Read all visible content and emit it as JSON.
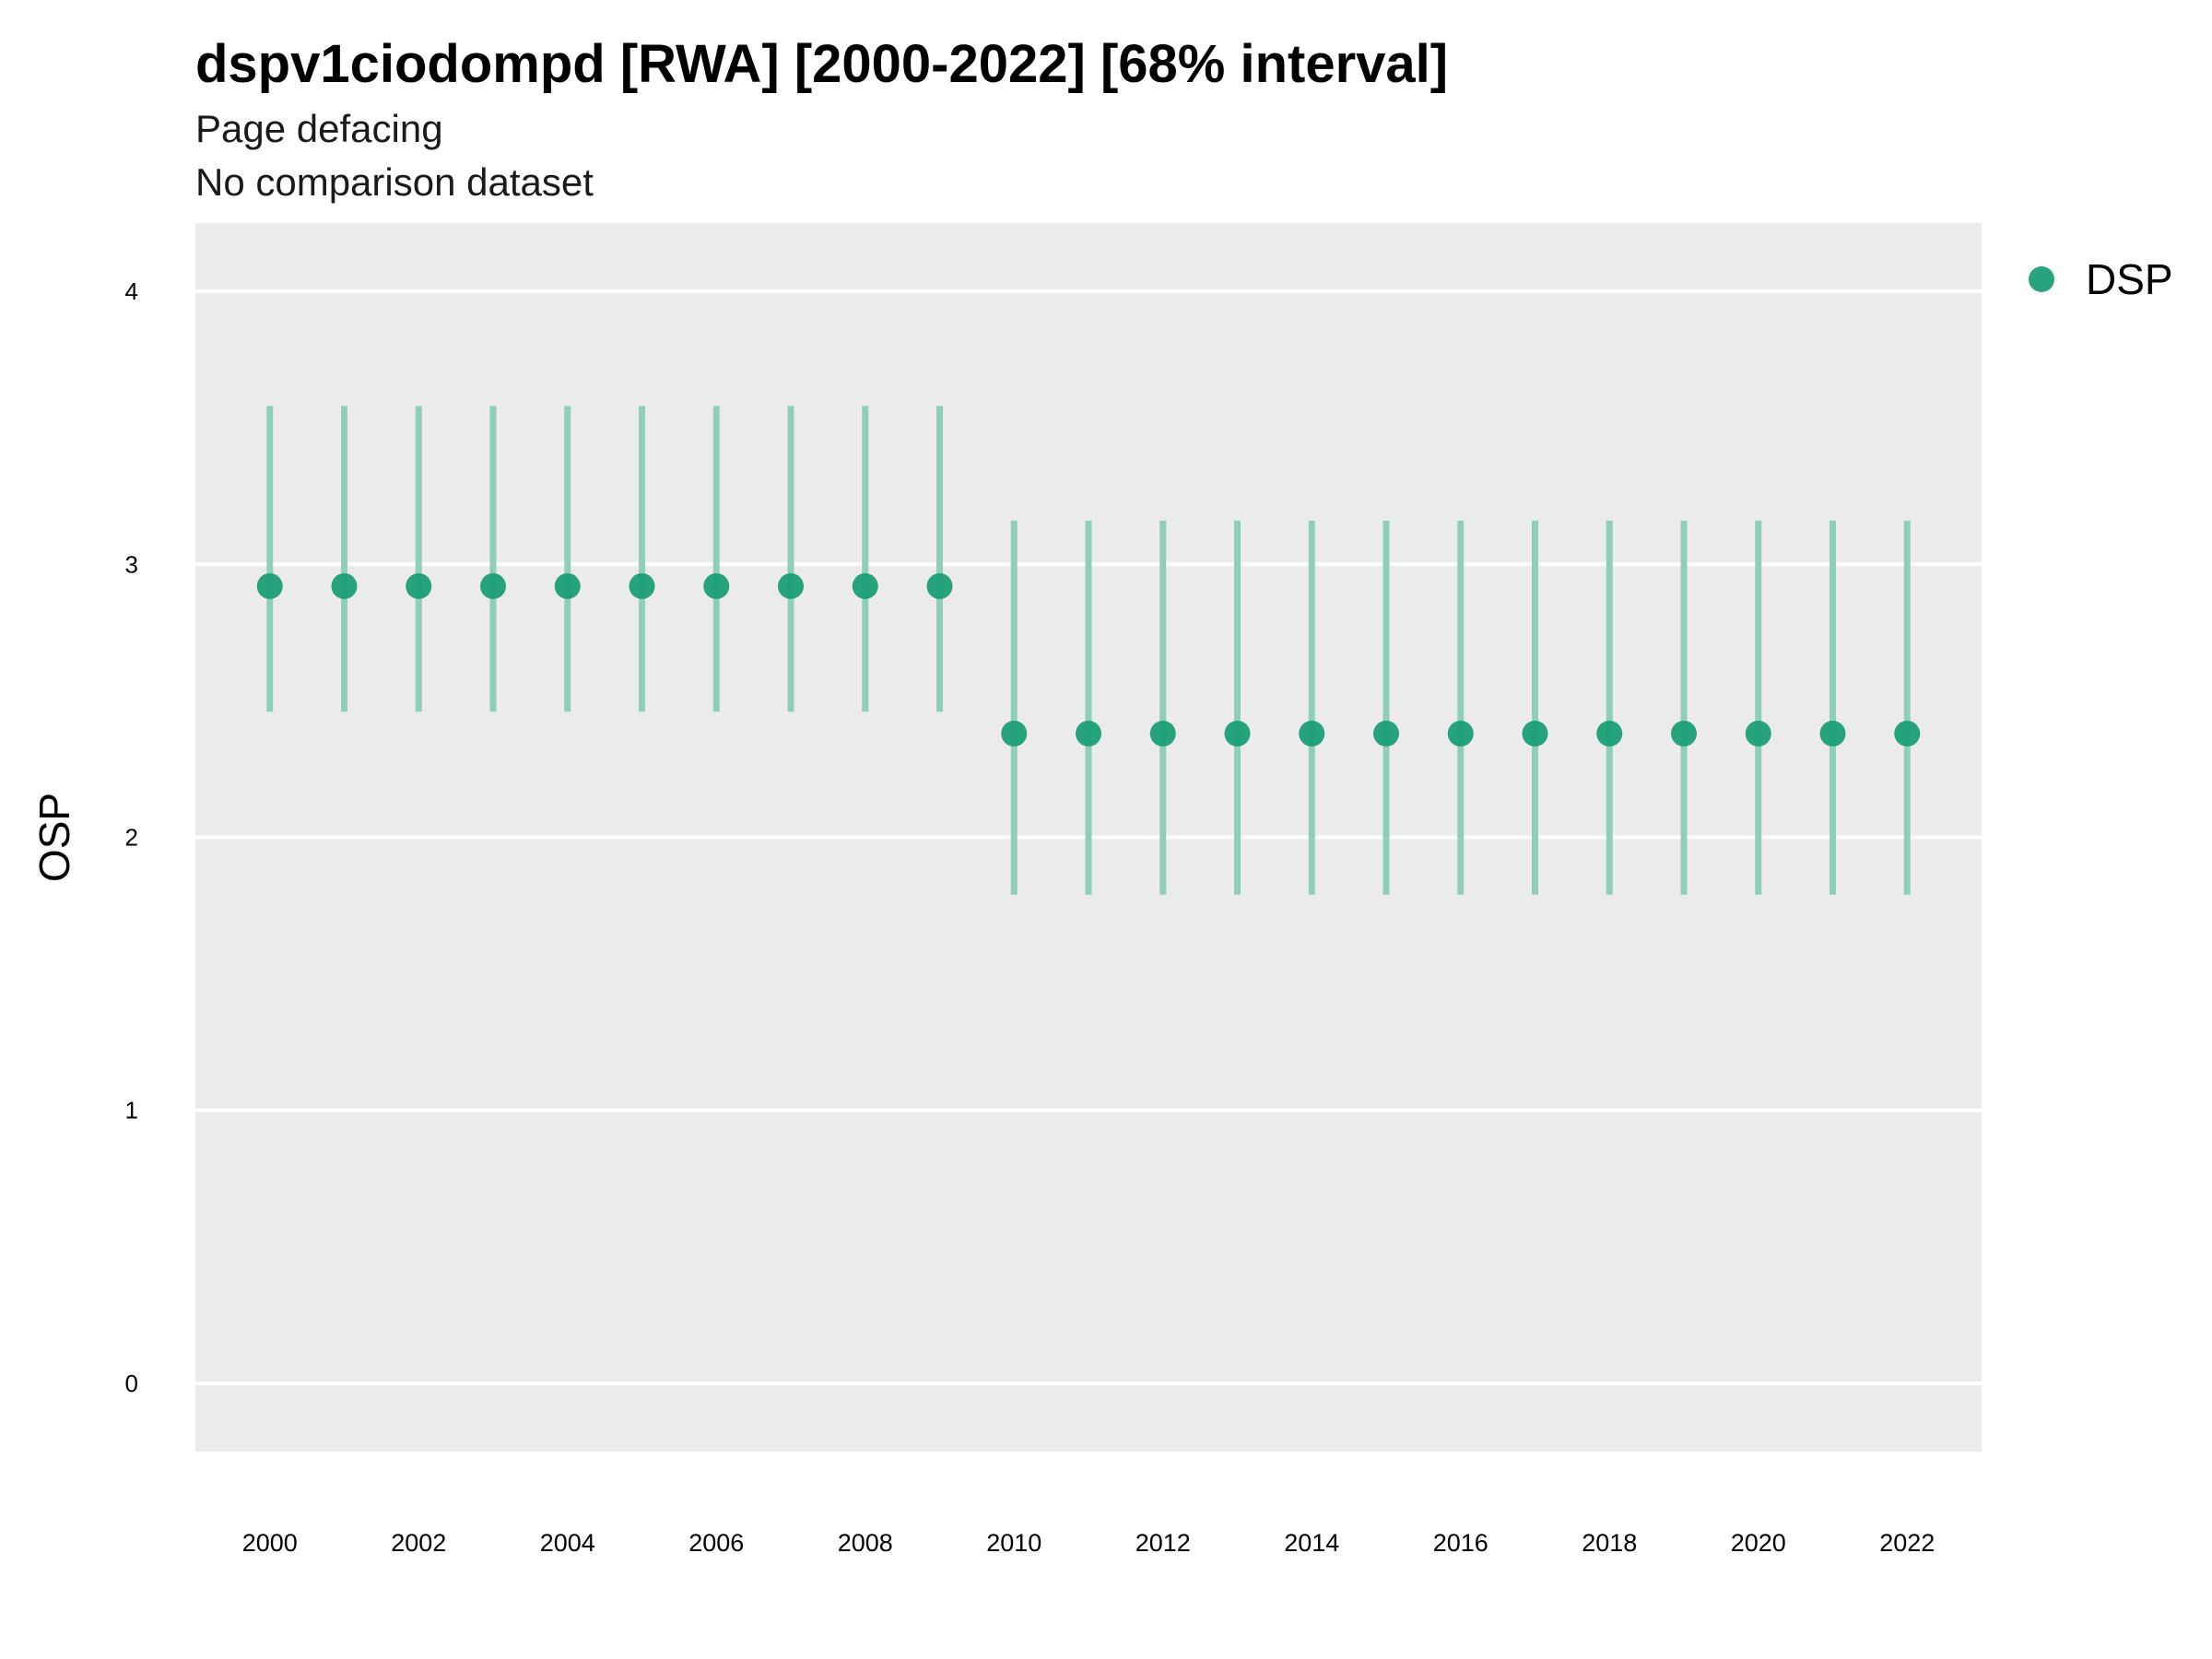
{
  "chart_data": {
    "type": "scatter",
    "title": "dspv1ciodompd [RWA] [2000-2022] [68% interval]",
    "subtitle": [
      "Page defacing",
      "No comparison dataset"
    ],
    "xlabel": "",
    "ylabel": "OSP",
    "xlim": [
      1999,
      2023
    ],
    "ylim": [
      -0.25,
      4.25
    ],
    "x_ticks": [
      "2000",
      "2002",
      "2004",
      "2006",
      "2008",
      "2010",
      "2012",
      "2014",
      "2016",
      "2018",
      "2020",
      "2022"
    ],
    "y_ticks": [
      "0",
      "1",
      "2",
      "3",
      "4"
    ],
    "grid": true,
    "legend": {
      "position": "right",
      "entries": [
        "DSP"
      ]
    },
    "colors": {
      "point": "#1b9e77",
      "interval": "#8fcfb9",
      "panel": "#ebebeb",
      "grid": "#ffffff"
    },
    "series": [
      {
        "name": "DSP",
        "x": [
          2000,
          2001,
          2002,
          2003,
          2004,
          2005,
          2006,
          2007,
          2008,
          2009,
          2010,
          2011,
          2012,
          2013,
          2014,
          2015,
          2016,
          2017,
          2018,
          2019,
          2020,
          2021,
          2022
        ],
        "y": [
          2.92,
          2.92,
          2.92,
          2.92,
          2.92,
          2.92,
          2.92,
          2.92,
          2.92,
          2.92,
          2.38,
          2.38,
          2.38,
          2.38,
          2.38,
          2.38,
          2.38,
          2.38,
          2.38,
          2.38,
          2.38,
          2.38,
          2.38
        ],
        "lower": [
          2.46,
          2.46,
          2.46,
          2.46,
          2.46,
          2.46,
          2.46,
          2.46,
          2.46,
          2.46,
          1.79,
          1.79,
          1.79,
          1.79,
          1.79,
          1.79,
          1.79,
          1.79,
          1.79,
          1.79,
          1.79,
          1.79,
          1.79
        ],
        "upper": [
          3.58,
          3.58,
          3.58,
          3.58,
          3.58,
          3.58,
          3.58,
          3.58,
          3.58,
          3.58,
          3.16,
          3.16,
          3.16,
          3.16,
          3.16,
          3.16,
          3.16,
          3.16,
          3.16,
          3.16,
          3.16,
          3.16,
          3.16
        ]
      }
    ]
  }
}
